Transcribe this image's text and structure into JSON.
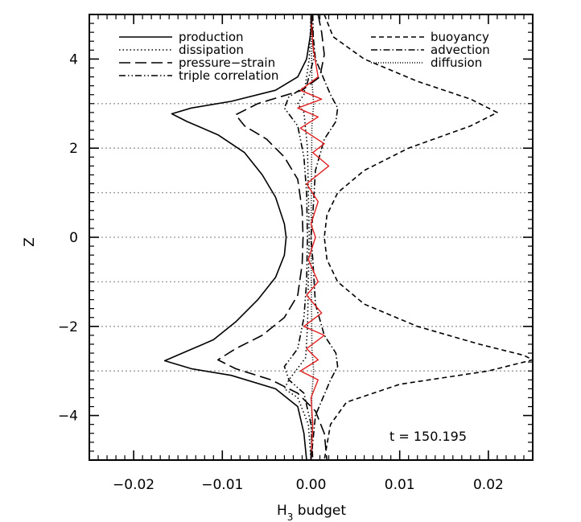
{
  "chart_data": {
    "type": "line",
    "xlabel": "H",
    "xlabel_sub": "3",
    "xlabel_rest": " budget",
    "ylabel": "Z",
    "xlim": [
      -0.025,
      0.025
    ],
    "ylim": [
      -5,
      5
    ],
    "x_ticks": [
      -0.02,
      -0.01,
      0.0,
      0.01,
      0.02
    ],
    "x_tick_labels": [
      "−0.02",
      "−0.01",
      "0.00",
      "0.01",
      "0.02"
    ],
    "y_ticks": [
      -4,
      -2,
      0,
      2,
      4
    ],
    "y_tick_labels": [
      "−4",
      "−2",
      "0",
      "2",
      "4"
    ],
    "reference_lines_z": [
      -3,
      -2,
      -1,
      0,
      1,
      2,
      3
    ],
    "annotation": "t  =  150.195",
    "legend_left": [
      "production",
      "dissipation",
      "pressure−strain",
      "triple correlation"
    ],
    "legend_right": [
      "buoyancy",
      "advection",
      "diffusion"
    ],
    "colors": {
      "axes": "#000000",
      "lines": "#000000",
      "highlight": "#e02020",
      "reference": "#999999"
    },
    "series": [
      {
        "name": "production",
        "style": "solid",
        "color": "#000000",
        "points": [
          [
            0.0002,
            5.0
          ],
          [
            -0.0001,
            4.5
          ],
          [
            -0.0005,
            4.0
          ],
          [
            -0.0015,
            3.6
          ],
          [
            -0.004,
            3.3
          ],
          [
            -0.009,
            3.05
          ],
          [
            -0.0135,
            2.9
          ],
          [
            -0.0157,
            2.77
          ],
          [
            -0.014,
            2.6
          ],
          [
            -0.0105,
            2.3
          ],
          [
            -0.0075,
            1.9
          ],
          [
            -0.0055,
            1.4
          ],
          [
            -0.004,
            0.9
          ],
          [
            -0.003,
            0.3
          ],
          [
            -0.0028,
            0.0
          ],
          [
            -0.003,
            -0.4
          ],
          [
            -0.004,
            -0.9
          ],
          [
            -0.006,
            -1.4
          ],
          [
            -0.0085,
            -1.9
          ],
          [
            -0.011,
            -2.3
          ],
          [
            -0.0145,
            -2.6
          ],
          [
            -0.0165,
            -2.77
          ],
          [
            -0.0135,
            -2.95
          ],
          [
            -0.009,
            -3.1
          ],
          [
            -0.004,
            -3.4
          ],
          [
            -0.0015,
            -3.8
          ],
          [
            -0.0008,
            -4.4
          ],
          [
            -0.0005,
            -5.0
          ]
        ]
      },
      {
        "name": "dissipation",
        "style": "dotted",
        "color": "#000000",
        "points": [
          [
            0.0,
            5.0
          ],
          [
            -0.0002,
            4.0
          ],
          [
            -0.0008,
            3.2
          ],
          [
            -0.0015,
            3.0
          ],
          [
            -0.0008,
            2.8
          ],
          [
            -0.0004,
            2.0
          ],
          [
            -0.0003,
            1.0
          ],
          [
            -0.0002,
            0.0
          ],
          [
            -0.0003,
            -1.0
          ],
          [
            -0.0004,
            -2.0
          ],
          [
            -0.0006,
            -2.7
          ],
          [
            -0.0025,
            -3.2
          ],
          [
            -0.003,
            -3.4
          ],
          [
            -0.0015,
            -3.6
          ],
          [
            -0.0003,
            -4.2
          ],
          [
            0.0,
            -5.0
          ]
        ]
      },
      {
        "name": "pressure−strain",
        "style": "longdash",
        "color": "#000000",
        "points": [
          [
            0.0008,
            5.0
          ],
          [
            0.0012,
            4.6
          ],
          [
            0.0015,
            4.1
          ],
          [
            0.001,
            3.6
          ],
          [
            -0.001,
            3.3
          ],
          [
            -0.006,
            3.0
          ],
          [
            -0.0085,
            2.75
          ],
          [
            -0.0075,
            2.5
          ],
          [
            -0.005,
            2.2
          ],
          [
            -0.003,
            1.8
          ],
          [
            -0.0015,
            1.3
          ],
          [
            -0.001,
            0.6
          ],
          [
            -0.0009,
            0.0
          ],
          [
            -0.001,
            -0.6
          ],
          [
            -0.0015,
            -1.3
          ],
          [
            -0.003,
            -1.8
          ],
          [
            -0.0055,
            -2.2
          ],
          [
            -0.0085,
            -2.5
          ],
          [
            -0.0105,
            -2.75
          ],
          [
            -0.0085,
            -2.95
          ],
          [
            -0.0045,
            -3.2
          ],
          [
            -0.0015,
            -3.5
          ],
          [
            0.0005,
            -3.9
          ],
          [
            0.0015,
            -4.4
          ],
          [
            0.0018,
            -5.0
          ]
        ]
      },
      {
        "name": "triple correlation",
        "style": "dashdotdot",
        "color": "#000000",
        "points": [
          [
            0.0002,
            5.0
          ],
          [
            0.0003,
            4.0
          ],
          [
            -0.0005,
            3.4
          ],
          [
            -0.0025,
            3.15
          ],
          [
            -0.003,
            2.9
          ],
          [
            -0.0015,
            2.5
          ],
          [
            -0.0008,
            1.8
          ],
          [
            -0.0005,
            1.0
          ],
          [
            -0.0004,
            0.0
          ],
          [
            -0.0005,
            -1.0
          ],
          [
            -0.0008,
            -1.8
          ],
          [
            -0.0015,
            -2.5
          ],
          [
            -0.003,
            -2.9
          ],
          [
            -0.0025,
            -3.2
          ],
          [
            -0.0008,
            -3.5
          ],
          [
            0.0,
            -4.2
          ],
          [
            0.0002,
            -5.0
          ]
        ]
      },
      {
        "name": "buoyancy",
        "style": "dashed",
        "color": "#000000",
        "points": [
          [
            0.0015,
            5.0
          ],
          [
            0.0025,
            4.5
          ],
          [
            0.006,
            4.0
          ],
          [
            0.012,
            3.5
          ],
          [
            0.018,
            3.1
          ],
          [
            0.021,
            2.8
          ],
          [
            0.018,
            2.5
          ],
          [
            0.011,
            2.0
          ],
          [
            0.006,
            1.5
          ],
          [
            0.003,
            1.0
          ],
          [
            0.0018,
            0.5
          ],
          [
            0.0015,
            0.0
          ],
          [
            0.0018,
            -0.5
          ],
          [
            0.003,
            -1.0
          ],
          [
            0.006,
            -1.5
          ],
          [
            0.012,
            -2.0
          ],
          [
            0.019,
            -2.4
          ],
          [
            0.024,
            -2.65
          ],
          [
            0.025,
            -2.75
          ],
          [
            0.02,
            -3.0
          ],
          [
            0.01,
            -3.3
          ],
          [
            0.004,
            -3.7
          ],
          [
            0.0022,
            -4.2
          ],
          [
            0.0015,
            -5.0
          ]
        ]
      },
      {
        "name": "advection",
        "style": "dashdot",
        "color": "#000000",
        "points": [
          [
            0.0,
            5.0
          ],
          [
            0.0005,
            4.0
          ],
          [
            0.0022,
            3.2
          ],
          [
            0.003,
            2.9
          ],
          [
            0.0028,
            2.6
          ],
          [
            0.0015,
            2.2
          ],
          [
            0.0005,
            1.5
          ],
          [
            0.0002,
            0.5
          ],
          [
            0.0,
            0.0
          ],
          [
            0.0002,
            -0.5
          ],
          [
            0.0005,
            -1.5
          ],
          [
            0.0015,
            -2.2
          ],
          [
            0.0028,
            -2.6
          ],
          [
            0.003,
            -2.9
          ],
          [
            0.0022,
            -3.2
          ],
          [
            0.0005,
            -4.0
          ],
          [
            0.0,
            -5.0
          ]
        ]
      },
      {
        "name": "diffusion",
        "style": "finedot",
        "color": "#000000",
        "points": [
          [
            0.0,
            5.0
          ],
          [
            0.0001,
            3.5
          ],
          [
            0.0003,
            3.0
          ],
          [
            0.0001,
            2.5
          ],
          [
            0.0,
            0.0
          ],
          [
            0.0001,
            -2.5
          ],
          [
            0.0003,
            -3.0
          ],
          [
            0.0001,
            -3.5
          ],
          [
            0.0,
            -5.0
          ]
        ]
      },
      {
        "name": "",
        "style": "solid",
        "color": "#e02020",
        "points": [
          [
            0.0,
            5.0
          ],
          [
            0.0002,
            4.3
          ],
          [
            0.0008,
            3.6
          ],
          [
            -0.0012,
            3.3
          ],
          [
            0.0012,
            3.1
          ],
          [
            -0.0015,
            2.9
          ],
          [
            0.0008,
            2.7
          ],
          [
            -0.0012,
            2.45
          ],
          [
            0.0015,
            2.1
          ],
          [
            0.0002,
            1.9
          ],
          [
            0.002,
            1.6
          ],
          [
            -0.0005,
            1.2
          ],
          [
            0.0008,
            0.8
          ],
          [
            0.0,
            0.3
          ],
          [
            0.0005,
            0.0
          ],
          [
            -0.0003,
            -0.5
          ],
          [
            0.0008,
            -1.0
          ],
          [
            -0.0005,
            -1.3
          ],
          [
            0.0012,
            -1.7
          ],
          [
            -0.0008,
            -2.0
          ],
          [
            0.0015,
            -2.2
          ],
          [
            -0.0005,
            -2.5
          ],
          [
            0.0008,
            -2.75
          ],
          [
            -0.0012,
            -3.0
          ],
          [
            0.0008,
            -3.2
          ],
          [
            0.0,
            -3.6
          ],
          [
            0.0002,
            -4.2
          ],
          [
            0.0,
            -5.0
          ]
        ]
      }
    ]
  }
}
